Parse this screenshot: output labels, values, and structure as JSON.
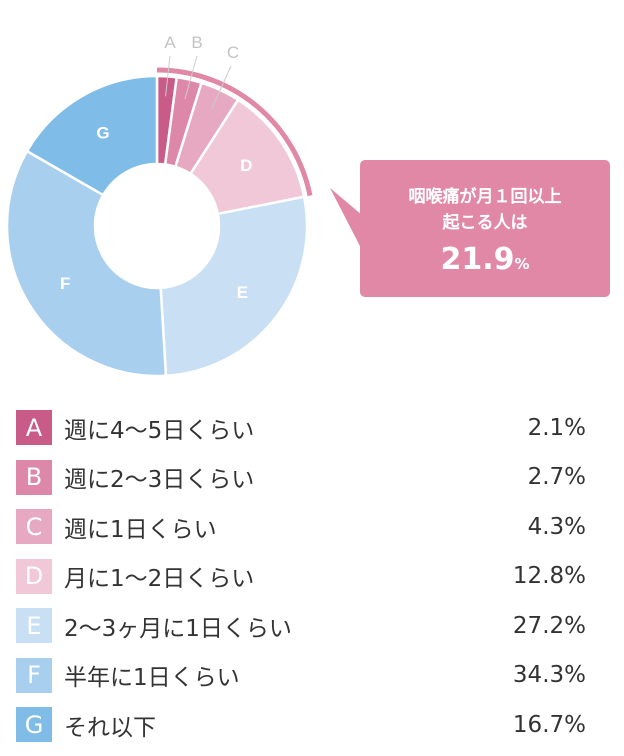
{
  "chart_data": {
    "type": "pie",
    "donut": true,
    "categories": [
      "A",
      "B",
      "C",
      "D",
      "E",
      "F",
      "G"
    ],
    "labels": [
      "週に4〜5日くらい",
      "週に2〜3日くらい",
      "週に1日くらい",
      "月に1〜2日くらい",
      "2〜3ヶ月に1日くらい",
      "半年に1日くらい",
      "それ以下"
    ],
    "values": [
      2.1,
      2.7,
      4.3,
      12.8,
      27.2,
      34.3,
      16.7
    ],
    "value_labels": [
      "2.1%",
      "2.7%",
      "4.3%",
      "12.8%",
      "27.2%",
      "34.3%",
      "16.7%"
    ],
    "colors": [
      "#c85b87",
      "#dd88a8",
      "#e6a9c1",
      "#f0c8d8",
      "#c9dff3",
      "#a9cfef",
      "#7fbde8"
    ],
    "highlight_color": "#e088a6",
    "annotation": {
      "line1": "咽喉痛が月１回以上",
      "line2": "起こる人は",
      "value": "21.9",
      "unit": "%"
    }
  }
}
